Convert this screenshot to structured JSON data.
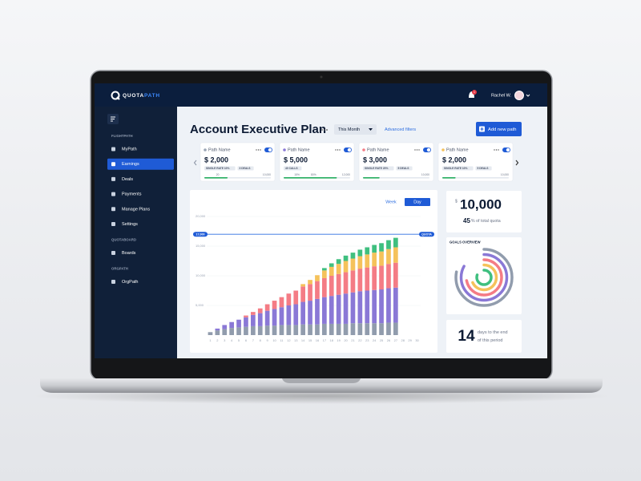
{
  "app": {
    "logo": [
      "QUOTA",
      "PATH"
    ],
    "user": "Rachel W.",
    "notifications": "1"
  },
  "sidebar": {
    "sections": [
      {
        "title": "FLIGHTPATH",
        "items": [
          "MyPath",
          "Earnings",
          "Deals",
          "Payments",
          "Manage Plans",
          "Settings"
        ]
      },
      {
        "title": "QUOTABOARD",
        "items": [
          "Boards"
        ]
      },
      {
        "title": "ORGPATH",
        "items": [
          "OrgPath"
        ]
      }
    ]
  },
  "header": {
    "title": "Account Executive Plan",
    "period": "This Month",
    "filters": "Advanced filters",
    "add_button": "Add new path"
  },
  "paths": [
    {
      "name": "Path Name",
      "color": "#9aa5b5",
      "amount": "$ 2,000",
      "tags": [
        "SINGLE RATE 10%",
        "3 DEALS"
      ],
      "progress": 35,
      "progress_labels": [
        "20",
        "10,000"
      ]
    },
    {
      "name": "Path Name",
      "color": "#8a78d6",
      "amount": "$ 5,000",
      "tags": [
        "40 CALLS"
      ],
      "progress": 80,
      "progress_labels": [
        "15%",
        "80%",
        "12,000"
      ]
    },
    {
      "name": "Path Name",
      "color": "#f47c85",
      "amount": "$ 3,000",
      "tags": [
        "SINGLE RATE 20%",
        "5 DEALS"
      ],
      "progress": 25,
      "progress_labels": [
        "10,000"
      ]
    },
    {
      "name": "Path Name",
      "color": "#f5c25b",
      "amount": "$ 2,000",
      "tags": [
        "SINGLE RATE 10%",
        "5 DEALS"
      ],
      "progress": 20,
      "progress_labels": [
        "10,000"
      ]
    }
  ],
  "chart_data": {
    "type": "bar",
    "stacked": true,
    "toggle": [
      "Week",
      "Day"
    ],
    "categories": [
      1,
      2,
      3,
      4,
      5,
      6,
      7,
      8,
      9,
      10,
      11,
      12,
      13,
      14,
      15,
      16,
      17,
      18,
      19,
      20,
      21,
      22,
      23,
      24,
      25,
      26,
      27,
      28,
      29,
      30
    ],
    "series": [
      {
        "color": "#919cad",
        "values": [
          500,
          800,
          1000,
          1200,
          1300,
          1400,
          1500,
          1500,
          1600,
          1600,
          1700,
          1700,
          1700,
          1800,
          1800,
          1800,
          1900,
          1900,
          1900,
          1900,
          2000,
          2000,
          2000,
          2000,
          2000,
          2100,
          2100,
          null,
          null,
          null
        ]
      },
      {
        "color": "#8a78d6",
        "values": [
          0,
          300,
          700,
          1000,
          1300,
          1600,
          1900,
          2200,
          2500,
          2800,
          3000,
          3300,
          3500,
          3800,
          4000,
          4300,
          4500,
          4700,
          4900,
          5100,
          5200,
          5400,
          5500,
          5600,
          5700,
          5800,
          5900,
          null,
          null,
          null
        ]
      },
      {
        "color": "#f47c85",
        "values": [
          0,
          0,
          0,
          0,
          0,
          300,
          500,
          800,
          1100,
          1400,
          1700,
          2000,
          2300,
          2600,
          2800,
          3000,
          3200,
          3400,
          3500,
          3600,
          3700,
          3800,
          3900,
          4000,
          4000,
          4100,
          4200,
          null,
          null,
          null
        ]
      },
      {
        "color": "#f5c25b",
        "values": [
          0,
          0,
          0,
          0,
          0,
          0,
          0,
          0,
          0,
          0,
          0,
          0,
          0,
          400,
          700,
          1000,
          1300,
          1500,
          1700,
          1900,
          2000,
          2100,
          2200,
          2300,
          2400,
          2500,
          2600,
          null,
          null,
          null
        ]
      },
      {
        "color": "#3fbf7f",
        "values": [
          0,
          0,
          0,
          0,
          0,
          0,
          0,
          0,
          0,
          0,
          0,
          0,
          0,
          0,
          0,
          0,
          400,
          600,
          800,
          900,
          1000,
          1100,
          1200,
          1300,
          1400,
          1500,
          1600,
          null,
          null,
          null
        ]
      }
    ],
    "ylim": [
      0,
      20000
    ],
    "yticks": [
      {
        "value": 5000,
        "label": "5,000"
      },
      {
        "value": 10000,
        "label": "10,000"
      },
      {
        "value": 15000,
        "label": "15,000"
      },
      {
        "value": 20000,
        "label": "20,000"
      }
    ],
    "grid": true,
    "quota": {
      "value": 17000,
      "label": "17,000",
      "name": "QUOTA"
    }
  },
  "summary": {
    "currency": "$",
    "amount": "10,000",
    "percent": 45,
    "percent_text": "% of total quota"
  },
  "goals_overview": {
    "title": "GOALS OVERVIEW",
    "values": [
      78,
      83,
      72,
      68,
      80
    ],
    "colors": [
      "#919cad",
      "#8a78d6",
      "#f47c85",
      "#f5c25b",
      "#3fbf7f"
    ]
  },
  "period_end": {
    "days": 14,
    "days_text": [
      "days to the end",
      "of this period"
    ]
  }
}
